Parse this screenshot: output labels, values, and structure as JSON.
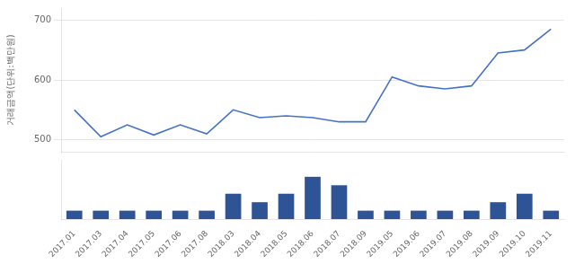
{
  "chart_data": [
    {
      "type": "line",
      "ylabel": "거래금액(단위:백만원)",
      "categories": [
        "2017.01",
        "2017.03",
        "2017.04",
        "2017.05",
        "2017.06",
        "2017.08",
        "2018.03",
        "2018.04",
        "2018.05",
        "2018.06",
        "2018.07",
        "2018.09",
        "2019.05",
        "2019.06",
        "2019.07",
        "2019.08",
        "2019.09",
        "2019.10",
        "2019.11"
      ],
      "values": [
        550,
        505,
        525,
        508,
        525,
        510,
        550,
        537,
        540,
        537,
        530,
        530,
        605,
        590,
        585,
        590,
        645,
        650,
        685
      ],
      "color": "#4472C4",
      "ylim": [
        480,
        720
      ],
      "yticks": [
        500,
        600,
        700
      ],
      "grid": true,
      "tick_labels": "y"
    },
    {
      "type": "bar",
      "categories": [
        "2017.01",
        "2017.03",
        "2017.04",
        "2017.05",
        "2017.06",
        "2017.08",
        "2018.03",
        "2018.04",
        "2018.05",
        "2018.06",
        "2018.07",
        "2018.09",
        "2019.05",
        "2019.06",
        "2019.07",
        "2019.08",
        "2019.09",
        "2019.10",
        "2019.11"
      ],
      "values": [
        1,
        1,
        1,
        1,
        1,
        1,
        3,
        2,
        3,
        5,
        4,
        1,
        1,
        1,
        1,
        1,
        2,
        3,
        1
      ],
      "color": "#2F5496",
      "ylim": [
        0,
        7
      ],
      "grid": false,
      "tick_labels": "x"
    }
  ]
}
